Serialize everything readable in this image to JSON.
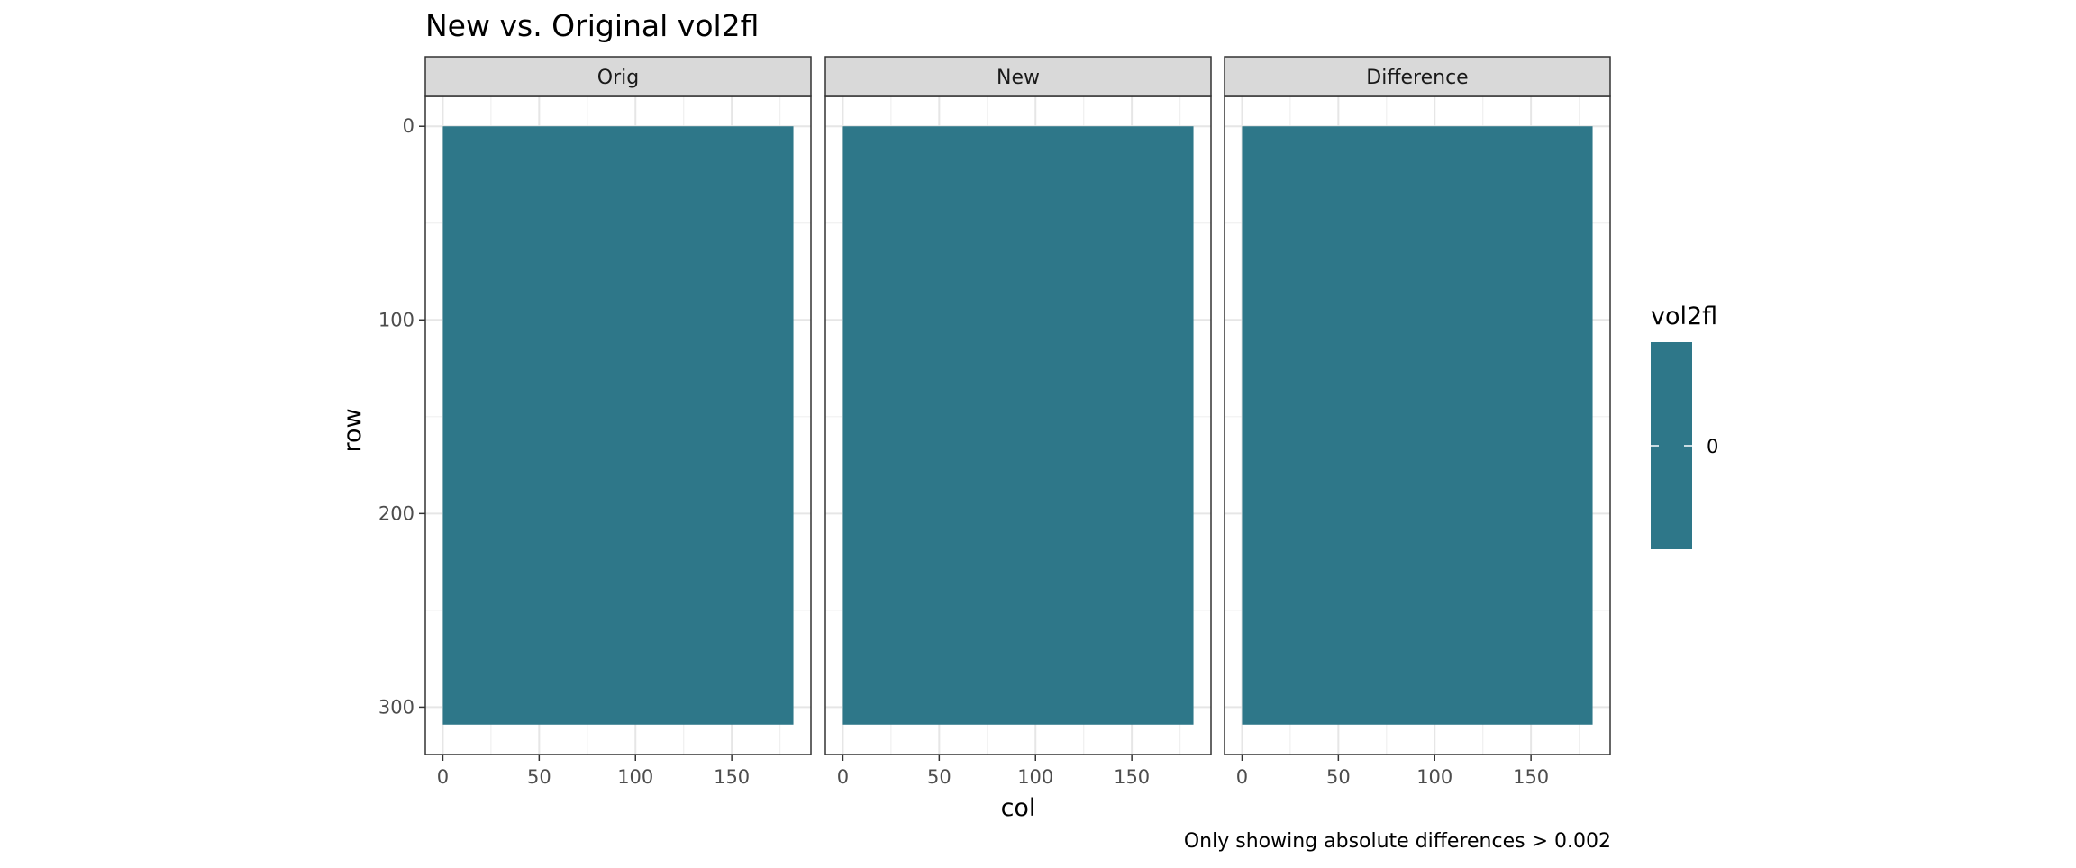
{
  "chart_data": {
    "type": "heatmap",
    "title": "New vs. Original vol2fl",
    "xlabel": "col",
    "ylabel": "row",
    "caption": "Only showing absolute differences > 0.002",
    "x_range": [
      0,
      182
    ],
    "y_range": [
      0,
      309
    ],
    "y_reversed": true,
    "x_ticks": [
      0,
      50,
      100,
      150
    ],
    "y_ticks": [
      0,
      100,
      200,
      300
    ],
    "grid": true,
    "panels": [
      {
        "label": "Orig",
        "fill_value": 0
      },
      {
        "label": "New",
        "fill_value": 0
      },
      {
        "label": "Difference",
        "fill_value": 0
      }
    ],
    "legend": {
      "title": "vol2fl",
      "placement": "right",
      "breaks": [
        0
      ],
      "break_labels": [
        "0"
      ],
      "color": "#2e7789"
    }
  }
}
